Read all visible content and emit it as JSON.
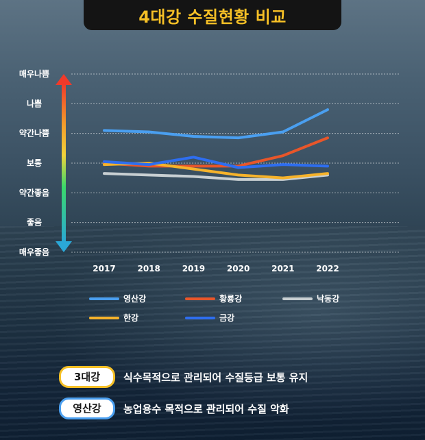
{
  "header": {
    "title": "4대강 수질현황 비교"
  },
  "chart_data": {
    "type": "line",
    "title": "4대강 수질현황 비교",
    "y_levels": [
      "매우좋음",
      "좋음",
      "약간좋음",
      "보통",
      "약간나쁨",
      "나쁨",
      "매우나쁨"
    ],
    "ylim": [
      1,
      7
    ],
    "categories": [
      "2017",
      "2018",
      "2019",
      "2020",
      "2021",
      "2022"
    ],
    "series": [
      {
        "name": "영산강",
        "color": "#4a9ff0",
        "values": [
          5.1,
          5.05,
          4.9,
          4.85,
          5.05,
          5.8
        ]
      },
      {
        "name": "황룡강",
        "color": "#e8562a",
        "values": [
          4.0,
          3.9,
          3.9,
          3.9,
          4.25,
          4.85
        ]
      },
      {
        "name": "낙동강",
        "color": "#c8cfd2",
        "values": [
          3.65,
          3.6,
          3.55,
          3.45,
          3.45,
          3.6
        ]
      },
      {
        "name": "한강",
        "color": "#f6b32b",
        "values": [
          3.95,
          4.0,
          3.8,
          3.6,
          3.5,
          3.65
        ]
      },
      {
        "name": "금강",
        "color": "#2e6ef0",
        "values": [
          4.05,
          3.95,
          4.2,
          3.85,
          3.95,
          3.9
        ]
      }
    ],
    "grid": true,
    "legend": "bottom"
  },
  "notes": [
    {
      "tag": "3대강",
      "text": "식수목적으로 관리되어 수질등급 보통 유지",
      "border": "#f6c026"
    },
    {
      "tag": "영산강",
      "text": "농업용수 목적으로 관리되어 수질 악화",
      "border": "#4a9ff0"
    }
  ]
}
